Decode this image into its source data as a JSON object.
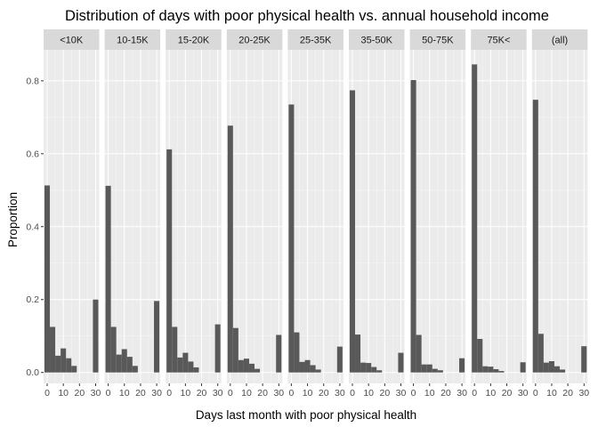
{
  "chart_data": {
    "type": "bar",
    "title": "Distribution of days with poor physical health vs. annual household income",
    "xlabel": "Days last month with poor physical health",
    "ylabel": "Proportion",
    "ylim": [
      -0.03,
      0.885
    ],
    "xlim": [
      -2.2,
      32.2
    ],
    "y_ticks": [
      0.0,
      0.2,
      0.4,
      0.6,
      0.8
    ],
    "y_tick_labels": [
      "0.0",
      "0.2",
      "0.4",
      "0.6",
      "0.8"
    ],
    "x_ticks": [
      0,
      10,
      20,
      30
    ],
    "x_tick_labels": [
      "0",
      "10",
      "20",
      "30"
    ],
    "bin_width": 3.33,
    "bin_starts": [
      -1.665,
      1.665,
      4.995,
      8.325,
      11.655,
      14.985,
      18.315,
      21.645,
      24.975,
      28.305
    ],
    "grid": true,
    "bar_color": "#595959",
    "panel_background": "#ebebeb",
    "strip_background": "#d9d9d9",
    "panels": [
      {
        "label": "<10K",
        "values": [
          0.513,
          0.125,
          0.046,
          0.066,
          0.039,
          0.018,
          0.2
        ]
      },
      {
        "label": "10-15K",
        "values": [
          0.512,
          0.125,
          0.049,
          0.064,
          0.043,
          0.018,
          0.196
        ]
      },
      {
        "label": "15-20K",
        "values": [
          0.612,
          0.125,
          0.041,
          0.054,
          0.03,
          0.014,
          0.132
        ]
      },
      {
        "label": "20-25K",
        "values": [
          0.677,
          0.122,
          0.034,
          0.038,
          0.024,
          0.01,
          0.103
        ]
      },
      {
        "label": "25-35K",
        "values": [
          0.735,
          0.11,
          0.029,
          0.034,
          0.02,
          0.008,
          0.071
        ]
      },
      {
        "label": "35-50K",
        "values": [
          0.774,
          0.104,
          0.027,
          0.026,
          0.015,
          0.006,
          0.054
        ]
      },
      {
        "label": "50-75K",
        "values": [
          0.802,
          0.103,
          0.022,
          0.022,
          0.01,
          0.006,
          0.039
        ]
      },
      {
        "label": "75K<",
        "values": [
          0.845,
          0.092,
          0.017,
          0.016,
          0.009,
          0.004,
          0.028
        ]
      },
      {
        "label": "(all)",
        "values": [
          0.748,
          0.106,
          0.027,
          0.031,
          0.017,
          0.008,
          0.072
        ]
      }
    ]
  }
}
